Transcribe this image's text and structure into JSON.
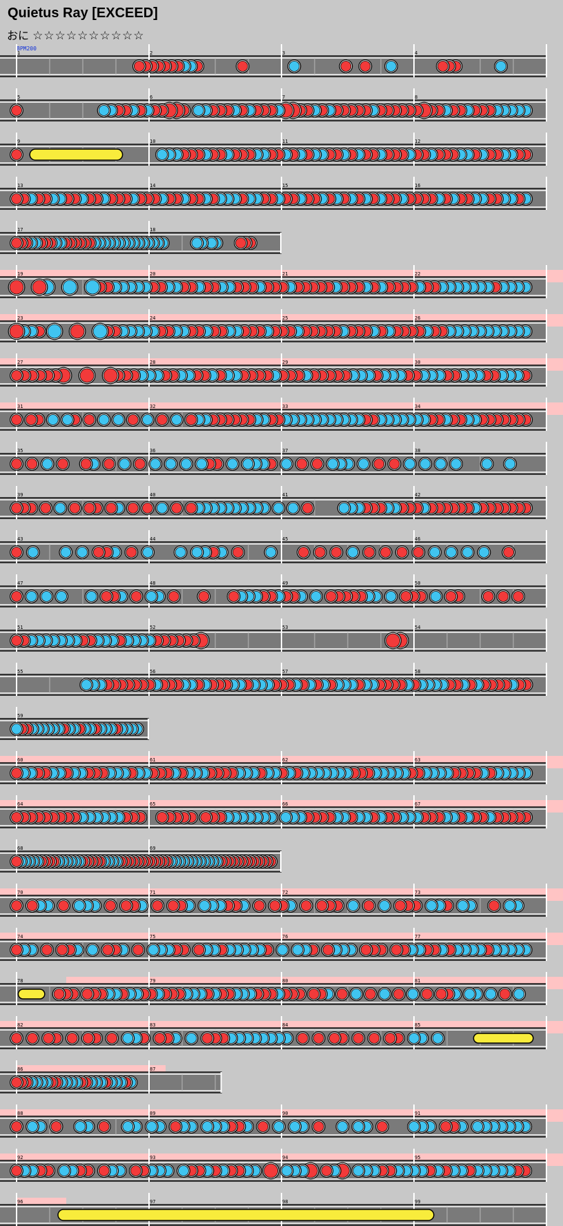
{
  "song": {
    "title": "Quietus Ray [EXCEED]",
    "course": "おに",
    "stars": "☆☆☆☆☆☆☆☆☆☆"
  },
  "bpm_label": "BPM200",
  "colors": {
    "don": "#f23a3a",
    "ka": "#40c4f0",
    "drumroll": "#f8ec3c",
    "lane": "#7a7a7a",
    "gogo": "#ffc4c4",
    "background": "#c8c8c8"
  },
  "measure_numbers": [
    "1",
    "2",
    "3",
    "4",
    "5",
    "6",
    "7",
    "8",
    "9",
    "10",
    "11",
    "12",
    "13",
    "14",
    "15",
    "16",
    "17",
    "18",
    "19",
    "20",
    "21",
    "22",
    "23",
    "24",
    "25",
    "26",
    "27",
    "28",
    "29",
    "30",
    "31",
    "32",
    "33",
    "34",
    "35",
    "36",
    "37",
    "38",
    "39",
    "40",
    "41",
    "42",
    "43",
    "44",
    "45",
    "46",
    "47",
    "48",
    "49",
    "50",
    "51",
    "52",
    "53",
    "54",
    "55",
    "56",
    "57",
    "58",
    "59",
    "60",
    "61",
    "62",
    "63",
    "64",
    "65",
    "66",
    "67",
    "68",
    "69",
    "70",
    "71",
    "72",
    "73",
    "74",
    "75",
    "76",
    "77",
    "78",
    "79",
    "80",
    "81",
    "82",
    "83",
    "84",
    "85",
    "86",
    "87",
    "88",
    "89",
    "90",
    "91",
    "92",
    "93",
    "94",
    "95",
    "96",
    "97",
    "98",
    "99"
  ],
  "rows": [
    {
      "measures": [
        "1",
        "2",
        "3",
        "4"
      ],
      "gogo": false,
      "end_beats": 16,
      "notes": "...................rrrrrrrbbr......r.......b.......r..r...b.......rrr......b....",
      "rolls": []
    },
    {
      "measures": [
        "5",
        "6",
        "7",
        "8"
      ],
      "gogo": false,
      "end_beats": 16,
      "notes": "r...........bbrrbrbrrRRr.bbrrrbrbrrrbRRrrbrbrrrrrbrrrrrrRrrbrrbrrrbbbbb",
      "rolls": []
    },
    {
      "measures": [
        "9",
        "10",
        "11",
        "12"
      ],
      "gogo": false,
      "end_beats": 16,
      "notes": "r...................bbbrrrbrrbrrrbbrrbrbrbbrrbrbrrbrrrbrrbrrrbbrbrrbbrr",
      "rolls": [
        {
          "s": 0.4,
          "e": 3.2,
          "big": true
        }
      ]
    },
    {
      "measures": [
        "13",
        "14",
        "15",
        "16"
      ],
      "gogo": false,
      "end_beats": 16,
      "notes": "rrbrrbbrrbrrbrrrbrrrbrrbrrbrbbbrbbrrbrrbrrbrbrbrbrbrrbrrrrbrbrrbbrrbbrb",
      "rolls": []
    },
    {
      "measures": [
        "17",
        "18"
      ],
      "gogo": false,
      "end_beats": 8,
      "notes": "rrrbbrrrbbrrrrrrbbbbbbbbbbbbbbb......bb.bb....rrr....",
      "rolls": []
    },
    {
      "measures": [
        "19",
        "20",
        "21",
        "22"
      ],
      "gogo": true,
      "end_beats": 16,
      "notes": "R..RB..B..Brrbbbbbrrbbrrbrrbbrrrbrrrbrrrrrbrrrbrbrrrrbrrbbbbbbbrbbbb",
      "rolls": []
    },
    {
      "measures": [
        "23",
        "24",
        "25",
        "26"
      ],
      "gogo": true,
      "end_beats": 16,
      "notes": "Rbbr.B..R..Brrbbbbbrrbbrrbrrbbrrrbrrrbrrrrrbrrrbrbrrrrbrrbbbbbbbbbbb",
      "rolls": []
    },
    {
      "measures": [
        "27",
        "28",
        "29",
        "30"
      ],
      "gogo": true,
      "end_beats": 16,
      "notes": "rrrrrrR..R..Rrrrbbbrrbbrrbrbbrrrrbrrrbrrrrrbbbrbbbrrbbbrrbbbrrbbbr",
      "rolls": []
    },
    {
      "measures": [
        "31",
        "32",
        "33",
        "34"
      ],
      "gogo": true,
      "end_beats": 16,
      "notes": "r.rr.b.br.r.b.b.r.b.r.b.rbbrrrrrrbbrrbbbbbbbbbbbrrbbbbbbbrrbrrbbrrrrrrr",
      "rolls": []
    },
    {
      "measures": [
        "35",
        "36",
        "37",
        "38"
      ],
      "gogo": false,
      "end_beats": 16,
      "notes": "r.r.b.r..rb.r.b.r.b.b.b.brr.b.bbbr.b.r.r.bbb.b.r.r.b.b.b.b...b..b..",
      "rolls": []
    },
    {
      "measures": [
        "39",
        "40",
        "41",
        "42"
      ],
      "gogo": false,
      "end_beats": 16,
      "notes": "rrr.r.b.r.rr.rb.r.r.b.r.rbbbbbbbbbb.b.b.r....bbbrrrbbrrrbrrrrrrbrrrrrrr",
      "rolls": []
    },
    {
      "measures": [
        "43",
        "44",
        "45",
        "46"
      ],
      "gogo": false,
      "end_beats": 16,
      "notes": "r.b...b.b.rrb.r.b...b.bbrb.r...b...r.r.r.b.r.r.r.r.b.b.b.b..r..",
      "rolls": []
    },
    {
      "measures": [
        "47",
        "48",
        "49",
        "50"
      ],
      "gogo": false,
      "end_beats": 16,
      "notes": "r.b.b.b...b.rrb.r.bb.r...r...rbbbrrbrrb.b.rrrrrbb.b.rrr.b.rr...r.r.r.",
      "rolls": []
    },
    {
      "measures": [
        "51",
        "52",
        "53",
        "54"
      ],
      "gogo": false,
      "end_beats": 16,
      "notes": "rrbbbbbbbrrbbbrbbbbrrrrrrR.........................RR.................",
      "rolls": []
    },
    {
      "measures": [
        "55",
        "56",
        "57",
        "58"
      ],
      "gogo": false,
      "end_beats": 16,
      "notes": "..........bbbrrrrrrrbrrrbbrbrrrbbrbbbrrrbrbrbrbbbrbbrrrrbrbbbbrrbrbrrrrbrr",
      "rolls": []
    },
    {
      "measures": [
        "59"
      ],
      "gogo": false,
      "end_beats": 4,
      "notes": "brrbbbbbbrbbrbbrbbbrbbbb",
      "rolls": []
    },
    {
      "measures": [
        "60",
        "61",
        "62",
        "63"
      ],
      "gogo": true,
      "end_beats": 16,
      "notes": "rbbrrbbrbbrrrbbbrbbrrrbrbbbrrrrbbbrbbrbrbbbbbbbrrrbbbbbrrbbbbrrrrbrbbbbb",
      "rolls": []
    },
    {
      "measures": [
        "64",
        "65",
        "66",
        "67"
      ],
      "gogo": true,
      "end_beats": 16,
      "notes": "rrrrrrrrrbbbbbbrrr..rrrrr.rrrbbbbbbb.bbbrrrrbbrbbrbrrbbbrrrbbrbrrbrrrrr",
      "rolls": []
    },
    {
      "measures": [
        "68",
        "69"
      ],
      "gogo": false,
      "end_beats": 8,
      "notes": "rbbbbbrrrrbbbbbbrrrrrbbbbrrrrrrrrrrrrbbbbbbbbbbbbrrrrrrrrrrrrr",
      "rolls": []
    },
    {
      "measures": [
        "70",
        "71",
        "72",
        "73"
      ],
      "gogo": true,
      "end_beats": 16,
      "notes": "r.rbb.r.bbb.r.rrb.r.rrb.bbbrrb.r.rrb.r.rrr.b.r.b.rrr.bbr.bb..r.bb.",
      "rolls": []
    },
    {
      "measures": [
        "74",
        "75",
        "76",
        "77"
      ],
      "gogo": true,
      "end_beats": 16,
      "notes": "rbb.r.rrb.b.rrb.r.bbbrr.rbbrbbbbbr.b.bbr.rbbb.rrr.rrbbrrbrbbbbrbbbbb",
      "rolls": []
    },
    {
      "measures": [
        "78",
        "79",
        "80",
        "81"
      ],
      "gogo": true,
      "gogo_start": 1.5,
      "end_beats": 16,
      "notes": "......rrr.rrrbbrbbrrbrrrbbbrbrrbbbrrrbrrr.rrb.r.b.r.b.r.b.r.rrb.bb.b.r.b.",
      "rolls": [
        {
          "s": 0.05,
          "e": 0.85,
          "big": false
        }
      ]
    },
    {
      "measures": [
        "82",
        "83",
        "84",
        "85"
      ],
      "gogo": true,
      "end_beats": 16,
      "notes": "r.r.rr.r.rr.r.bbr.rrb.b.rrrbbbbbbbb.r.r.rr.r.r.rr.bb.b...........",
      "rolls": [
        {
          "s": 13.8,
          "e": 15.6,
          "big": false
        }
      ]
    },
    {
      "measures": [
        "86",
        "87"
      ],
      "gogo": true,
      "gogo_start": 0,
      "gogo_end": 4.5,
      "end_beats": 6.2,
      "notes": "rrrbbbbrrbbbbrrbbbrbbbrb................",
      "rolls": []
    },
    {
      "measures": [
        "88",
        "89",
        "90",
        "91"
      ],
      "gogo": true,
      "end_beats": 16,
      "notes": "r.bb.r..bb.r..bb.bb.rbb.bbbrrb.r.b.bb.r..b.bb.r...bbb.rrb.bbbbbbb",
      "rolls": []
    },
    {
      "measures": [
        "92",
        "93",
        "94",
        "95"
      ],
      "gogo": true,
      "end_beats": 16,
      "notes": "rbbrr.bbrr.rbb.rrbbb.brrbrbrrbb.R.bbbR.rbR.bbbrrbbbbrbrbbrbbbbbrr",
      "rolls": []
    },
    {
      "measures": [
        "96",
        "97",
        "98",
        "99"
      ],
      "gogo": true,
      "gogo_start": 0,
      "gogo_end": 1.5,
      "end_beats": 16,
      "notes": "",
      "rolls": [
        {
          "s": 1.25,
          "e": 12.6,
          "big": true
        }
      ]
    }
  ]
}
